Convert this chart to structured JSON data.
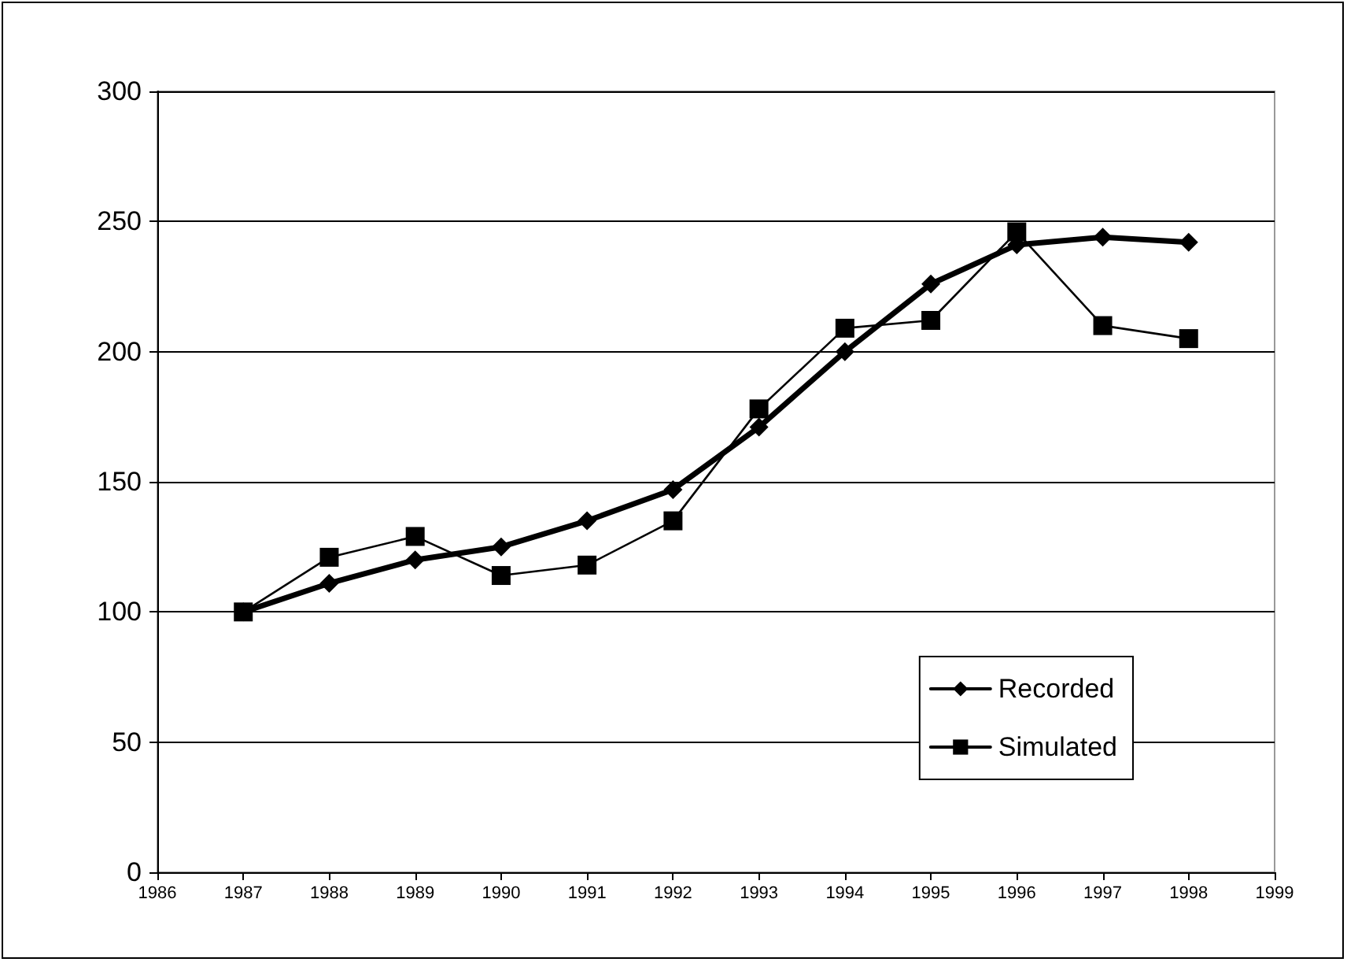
{
  "chart_data": {
    "type": "line",
    "x": [
      1987,
      1988,
      1989,
      1990,
      1991,
      1992,
      1993,
      1994,
      1995,
      1996,
      1997,
      1998
    ],
    "series": [
      {
        "name": "Recorded",
        "color": "#000000",
        "marker": "diamond",
        "values": [
          100,
          111,
          120,
          125,
          135,
          147,
          171,
          200,
          226,
          241,
          244,
          242
        ]
      },
      {
        "name": "Simulated",
        "color": "#000000",
        "marker": "square",
        "values": [
          100,
          121,
          129,
          114,
          118,
          135,
          178,
          209,
          212,
          246,
          210,
          205
        ]
      }
    ],
    "xlim": [
      1986,
      1999
    ],
    "xticks": [
      1986,
      1987,
      1988,
      1989,
      1990,
      1991,
      1992,
      1993,
      1994,
      1995,
      1996,
      1997,
      1998,
      1999
    ],
    "ylim": [
      0,
      300
    ],
    "yticks": [
      0,
      50,
      100,
      150,
      200,
      250,
      300
    ],
    "grid": "y",
    "legend": "bottom right",
    "line_style": "solid"
  }
}
